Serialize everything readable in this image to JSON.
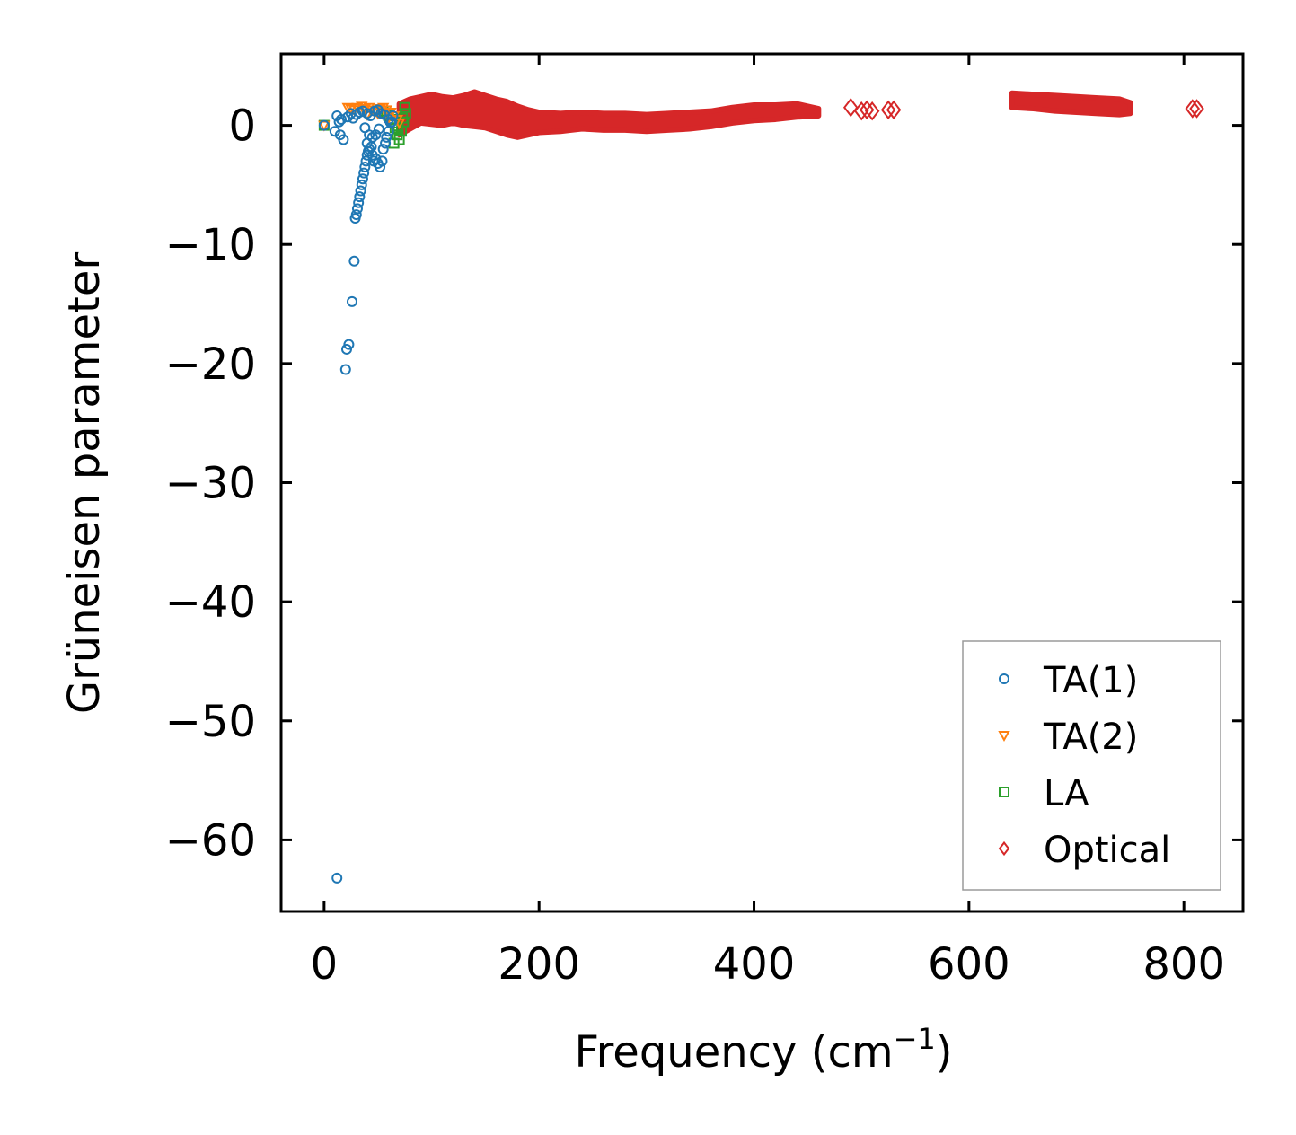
{
  "chart_data": {
    "type": "scatter",
    "title": "",
    "xlabel": "Frequency (cm",
    "xlabel_sup": "−1",
    "xlabel_close": ")",
    "ylabel": "Grüneisen parameter",
    "xlim": [
      -40,
      855
    ],
    "ylim": [
      -66,
      6
    ],
    "xticks": [
      0,
      200,
      400,
      600,
      800
    ],
    "xtick_labels": [
      "0",
      "200",
      "400",
      "600",
      "800"
    ],
    "yticks": [
      0,
      -10,
      -20,
      -30,
      -40,
      -50,
      -60
    ],
    "ytick_labels": [
      "0",
      "−10",
      "−20",
      "−30",
      "−40",
      "−50",
      "−60"
    ],
    "legend_position": "lower-right",
    "series": [
      {
        "name": "TA(1)",
        "marker": "circle",
        "color": "#1f77b4",
        "x": [
          0,
          10,
          12,
          15,
          18,
          20,
          21,
          23,
          26,
          28,
          29,
          30,
          31,
          32,
          33,
          34,
          35,
          36,
          37,
          38,
          39,
          40,
          41,
          42,
          44,
          45,
          46,
          48,
          50,
          52,
          54,
          55,
          57,
          58,
          60,
          62,
          64,
          12,
          14,
          16,
          22,
          25,
          27,
          30,
          33,
          36,
          40,
          43,
          47,
          50,
          53,
          56,
          60,
          63,
          45,
          48,
          51,
          40,
          42,
          38
        ],
        "y": [
          0,
          -0.5,
          0.8,
          -0.8,
          -1.2,
          -20.5,
          -18.8,
          -18.4,
          -14.8,
          -11.4,
          -7.8,
          -7.5,
          -7.0,
          -6.5,
          -6.0,
          -5.5,
          -5.0,
          -4.5,
          -4.0,
          -3.5,
          -3.0,
          -2.5,
          -2.2,
          -2.0,
          -1.8,
          -2.5,
          -3.0,
          -2.8,
          -3.2,
          -3.5,
          -3.0,
          -2.0,
          -1.5,
          -1.0,
          -0.5,
          0.2,
          0.8,
          -63.2,
          0.3,
          0.5,
          0.7,
          1.0,
          0.6,
          0.9,
          1.1,
          1.2,
          1.0,
          0.8,
          1.2,
          1.3,
          1.0,
          0.9,
          0.5,
          0.3,
          -1.0,
          -0.8,
          -0.3,
          -1.5,
          -0.8,
          -0.2
        ]
      },
      {
        "name": "TA(2)",
        "marker": "triangle-down",
        "color": "#ff7f0e",
        "x": [
          0,
          22,
          25,
          28,
          31,
          35,
          38,
          42,
          45,
          48,
          52,
          55,
          58,
          62,
          65,
          68,
          40,
          50,
          60,
          70
        ],
        "y": [
          0,
          1.5,
          1.4,
          1.3,
          1.5,
          1.6,
          1.4,
          1.5,
          1.3,
          1.2,
          1.4,
          1.5,
          1.3,
          1.1,
          0.8,
          0.5,
          0.9,
          1.0,
          0.6,
          0.2
        ]
      },
      {
        "name": "LA",
        "marker": "square",
        "color": "#2ca02c",
        "x": [
          0,
          55,
          58,
          60,
          62,
          64,
          66,
          68,
          70,
          72,
          74,
          76,
          65,
          69,
          73,
          75
        ],
        "y": [
          0,
          1.2,
          1.0,
          0.8,
          0.5,
          0.2,
          -0.2,
          -0.8,
          -1.2,
          -0.5,
          0.3,
          1.0,
          -1.5,
          -0.3,
          0.6,
          1.5
        ]
      },
      {
        "name": "Optical",
        "marker": "diamond",
        "color": "#d62728",
        "x": [
          490,
          500,
          505,
          510,
          525,
          530,
          808,
          812
        ],
        "y": [
          1.5,
          1.2,
          1.3,
          1.2,
          1.3,
          1.3,
          1.4,
          1.4
        ]
      }
    ],
    "optical_band": {
      "x": [
        70,
        80,
        90,
        100,
        110,
        120,
        130,
        140,
        150,
        160,
        170,
        180,
        190,
        200,
        220,
        240,
        260,
        280,
        300,
        320,
        340,
        360,
        380,
        400,
        420,
        440,
        460,
        640,
        660,
        680,
        700,
        720,
        740,
        750
      ],
      "y_upper": [
        1.8,
        2.2,
        2.4,
        2.6,
        2.4,
        2.3,
        2.5,
        2.8,
        2.5,
        2.2,
        2.0,
        1.6,
        1.3,
        1.1,
        1.0,
        1.1,
        1.0,
        1.0,
        0.9,
        1.0,
        1.1,
        1.2,
        1.5,
        1.7,
        1.7,
        1.8,
        1.4,
        2.7,
        2.6,
        2.5,
        2.4,
        2.3,
        2.2,
        1.9
      ],
      "y_lower": [
        -0.8,
        -0.3,
        0.2,
        0.1,
        0.0,
        0.2,
        0.0,
        -0.1,
        -0.2,
        -0.5,
        -0.8,
        -1.0,
        -0.8,
        -0.6,
        -0.5,
        -0.3,
        -0.4,
        -0.4,
        -0.5,
        -0.4,
        -0.3,
        -0.1,
        0.2,
        0.4,
        0.5,
        0.7,
        0.8,
        1.5,
        1.4,
        1.2,
        1.1,
        1.0,
        0.9,
        1.0
      ]
    }
  }
}
